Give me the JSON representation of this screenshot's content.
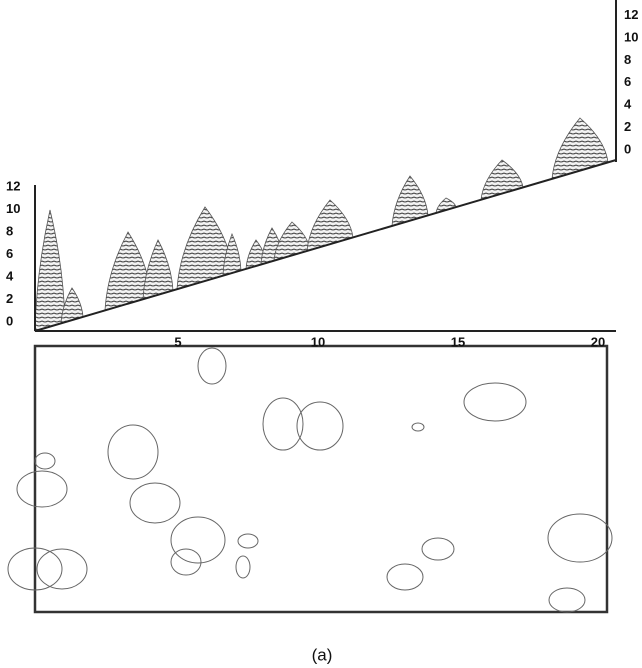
{
  "left_axis": {
    "ticks": [
      0,
      2,
      4,
      6,
      8,
      10,
      12
    ]
  },
  "right_axis": {
    "ticks": [
      0,
      2,
      4,
      6,
      8,
      10,
      12
    ]
  },
  "bottom_axis": {
    "ticks": [
      5,
      10,
      15,
      20
    ]
  },
  "caption": "(a)"
}
